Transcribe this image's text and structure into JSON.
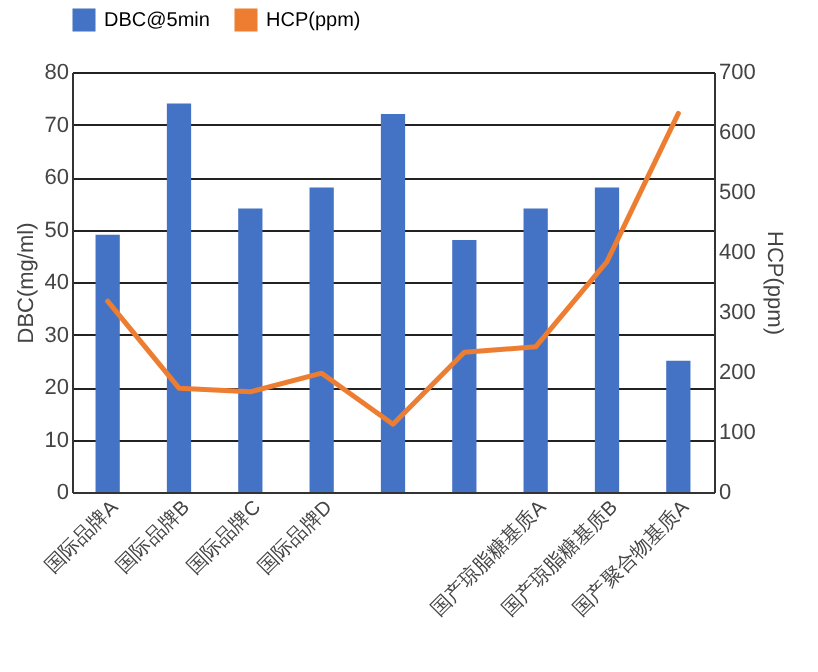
{
  "chart_data": {
    "type": "bar",
    "categories": [
      "国际品牌A",
      "国际品牌B",
      "国际品牌C",
      "国际品牌D",
      null,
      null,
      "国产琼脂糖基质A",
      "国产琼脂糖基质B",
      "国产聚合物基质A"
    ],
    "series": [
      {
        "name": "DBC@5min",
        "color": "#4472c4",
        "values": [
          49,
          74,
          54,
          58,
          72,
          48,
          54,
          58,
          25
        ]
      },
      {
        "name": "HCP(ppm)",
        "type": "line",
        "axis": "y2",
        "color": "#ed7d31",
        "values": [
          318,
          173,
          167,
          198,
          113,
          233,
          242,
          384,
          631
        ]
      }
    ],
    "ylabel": "DBC(mg/ml)",
    "y2label": "HCP(ppm)",
    "ylim": [
      0,
      80
    ],
    "yticks": [
      0,
      10,
      20,
      30,
      40,
      50,
      60,
      70,
      80
    ],
    "y2lim": [
      0,
      700
    ],
    "y2ticks": [
      0,
      100,
      200,
      300,
      400,
      500,
      600,
      700
    ],
    "grid": true,
    "legend": "top"
  }
}
